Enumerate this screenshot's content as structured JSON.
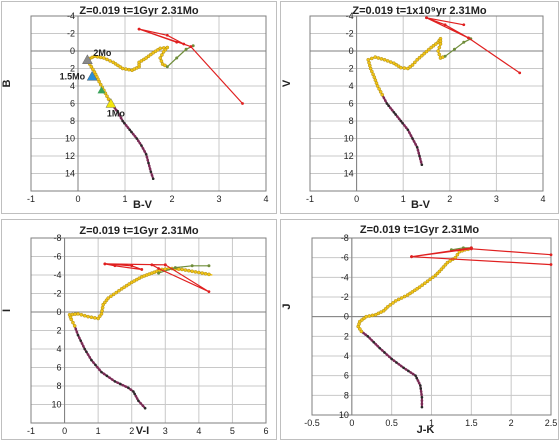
{
  "colors": {
    "main_sequence": "#7b2c56",
    "ms_dot": "#2a2a2a",
    "giant_branch": "#f2c417",
    "giant_edge": "#9a7d10",
    "agb_green": "#6f8d3a",
    "track_red": "#e02020",
    "grid": "#c8c8c8",
    "axis": "#7f7f7f"
  },
  "chart_data": [
    {
      "type": "scatter",
      "title": "Z=0.019  t=1Gyr  2.31Mo",
      "xlabel": "B-V",
      "ylabel": "B",
      "xlim": [
        -1,
        4
      ],
      "ylim": [
        -4,
        16
      ],
      "y_inverted": true,
      "grid": true,
      "xticks": [
        -1,
        0,
        1,
        2,
        3,
        4
      ],
      "yticks": [
        -4,
        -2,
        0,
        2,
        4,
        6,
        8,
        10,
        12,
        14,
        16
      ],
      "ytick_labels": [
        "-4",
        "-2",
        "0",
        "2",
        "4",
        "6",
        "8",
        "10",
        "12",
        "14",
        ""
      ],
      "series": [
        {
          "role": "main_sequence",
          "points": [
            [
              1.6,
              14.6
            ],
            [
              1.55,
              13.8
            ],
            [
              1.5,
              12.8
            ],
            [
              1.45,
              11.8
            ],
            [
              1.35,
              10.8
            ],
            [
              1.25,
              10.0
            ],
            [
              1.1,
              9.0
            ],
            [
              0.95,
              8.0
            ],
            [
              0.85,
              7.0
            ],
            [
              0.75,
              6.3
            ],
            [
              0.65,
              5.5
            ]
          ]
        },
        {
          "role": "giant_branch",
          "points": [
            [
              0.65,
              5.5
            ],
            [
              0.55,
              4.5
            ],
            [
              0.45,
              3.5
            ],
            [
              0.35,
              2.4
            ],
            [
              0.25,
              1.5
            ],
            [
              0.2,
              1.0
            ],
            [
              0.35,
              0.6
            ],
            [
              0.55,
              0.8
            ],
            [
              0.75,
              1.3
            ],
            [
              0.95,
              2.0
            ],
            [
              1.15,
              2.2
            ],
            [
              1.3,
              1.8
            ],
            [
              1.3,
              1.3
            ],
            [
              1.45,
              0.8
            ],
            [
              1.6,
              0.2
            ],
            [
              1.75,
              -0.3
            ],
            [
              1.9,
              -0.4
            ],
            [
              1.82,
              0.1
            ],
            [
              1.75,
              0.8
            ],
            [
              1.8,
              1.5
            ],
            [
              1.9,
              1.8
            ]
          ]
        },
        {
          "role": "agb",
          "points": [
            [
              1.9,
              1.8
            ],
            [
              2.1,
              0.8
            ],
            [
              2.3,
              -0.2
            ],
            [
              2.45,
              -0.6
            ]
          ]
        },
        {
          "role": "post_agb",
          "points": [
            [
              1.3,
              -2.5
            ],
            [
              2.4,
              -0.5
            ],
            [
              3.5,
              6.0
            ],
            [
              2.4,
              -0.5
            ],
            [
              2.25,
              -0.8
            ],
            [
              1.9,
              -1.8
            ],
            [
              1.3,
              -2.5
            ],
            [
              2.1,
              -1.0
            ]
          ]
        }
      ],
      "markers": [
        {
          "label": "2Mo",
          "x": 0.2,
          "y": 1.0,
          "color": "#8a8a8a"
        },
        {
          "label": "1.5Mo",
          "x": 0.3,
          "y": 2.9,
          "color": "#2b8fd6"
        },
        {
          "label": "",
          "x": 0.5,
          "y": 4.5,
          "color": "#3aa35c"
        },
        {
          "label": "1Mo",
          "x": 0.7,
          "y": 6.0,
          "color": "#f2e60d"
        }
      ]
    },
    {
      "type": "scatter",
      "title": "Z=0.019  t=1x10⁹yr  2.31Mo",
      "xlabel": "B-V",
      "ylabel": "V",
      "xlim": [
        -1,
        4
      ],
      "ylim": [
        -4,
        16
      ],
      "y_inverted": true,
      "grid": true,
      "xticks": [
        -1,
        0,
        1,
        2,
        3,
        4
      ],
      "yticks": [
        -4,
        -2,
        0,
        2,
        4,
        6,
        8,
        10,
        12,
        14,
        16
      ],
      "ytick_labels": [
        "-4",
        "-2",
        "0",
        "2",
        "4",
        "6",
        "8",
        "10",
        "12",
        "14",
        ""
      ],
      "series": [
        {
          "role": "main_sequence",
          "points": [
            [
              1.4,
              13.0
            ],
            [
              1.35,
              12.0
            ],
            [
              1.3,
              11.0
            ],
            [
              1.2,
              10.0
            ],
            [
              1.1,
              9.0
            ],
            [
              0.95,
              8.0
            ],
            [
              0.8,
              7.0
            ],
            [
              0.65,
              6.0
            ],
            [
              0.55,
              5.0
            ]
          ]
        },
        {
          "role": "giant_branch",
          "points": [
            [
              0.55,
              5.0
            ],
            [
              0.45,
              4.0
            ],
            [
              0.38,
              3.0
            ],
            [
              0.3,
              2.0
            ],
            [
              0.25,
              1.0
            ],
            [
              0.4,
              0.7
            ],
            [
              0.6,
              1.0
            ],
            [
              0.8,
              1.4
            ],
            [
              0.95,
              1.9
            ],
            [
              1.1,
              2.0
            ],
            [
              1.2,
              1.6
            ],
            [
              1.3,
              1.0
            ],
            [
              1.45,
              0.3
            ],
            [
              1.6,
              -0.4
            ],
            [
              1.75,
              -1.0
            ],
            [
              1.8,
              -1.4
            ],
            [
              1.8,
              -0.8
            ],
            [
              1.75,
              0
            ],
            [
              1.8,
              0.8
            ],
            [
              1.9,
              0.6
            ]
          ]
        },
        {
          "role": "agb",
          "points": [
            [
              1.9,
              0.6
            ],
            [
              2.1,
              -0.2
            ],
            [
              2.3,
              -1.0
            ],
            [
              2.45,
              -1.4
            ]
          ]
        },
        {
          "role": "post_agb",
          "points": [
            [
              1.5,
              -3.8
            ],
            [
              2.4,
              -1.5
            ],
            [
              3.5,
              2.5
            ],
            [
              2.4,
              -1.5
            ],
            [
              1.9,
              -3.0
            ],
            [
              1.5,
              -3.8
            ],
            [
              2.3,
              -3.0
            ]
          ]
        }
      ],
      "markers": []
    },
    {
      "type": "scatter",
      "title": "Z=0.019  t=1Gyr  2.31Mo",
      "xlabel": "V-I",
      "ylabel": "I",
      "xlim": [
        -1,
        6
      ],
      "ylim": [
        -8,
        12
      ],
      "y_inverted": true,
      "grid": true,
      "xticks": [
        -1,
        0,
        1,
        2,
        3,
        4,
        5,
        6
      ],
      "yticks": [
        -8,
        -6,
        -4,
        -2,
        0,
        2,
        4,
        6,
        8,
        10,
        12
      ],
      "ytick_labels": [
        "-8",
        "-6",
        "-4",
        "-2",
        "0",
        "2",
        "4",
        "6",
        "8",
        "10",
        ""
      ],
      "series": [
        {
          "role": "main_sequence",
          "points": [
            [
              2.4,
              10.4
            ],
            [
              2.2,
              9.6
            ],
            [
              2.05,
              8.6
            ],
            [
              1.9,
              8.2
            ],
            [
              1.5,
              7.5
            ],
            [
              1.1,
              6.5
            ],
            [
              0.8,
              5.2
            ],
            [
              0.6,
              4.0
            ],
            [
              0.4,
              2.5
            ],
            [
              0.3,
              1.5
            ]
          ]
        },
        {
          "role": "giant_branch",
          "points": [
            [
              0.3,
              1.5
            ],
            [
              0.2,
              0.8
            ],
            [
              0.15,
              0.3
            ],
            [
              0.4,
              0.2
            ],
            [
              0.7,
              0.5
            ],
            [
              1.0,
              0.7
            ],
            [
              1.1,
              0.2
            ],
            [
              1.15,
              -0.8
            ],
            [
              1.3,
              -1.5
            ],
            [
              1.7,
              -2.5
            ],
            [
              2.0,
              -3.2
            ],
            [
              2.3,
              -3.8
            ],
            [
              2.6,
              -4.2
            ],
            [
              2.9,
              -4.6
            ],
            [
              3.2,
              -4.7
            ],
            [
              3.5,
              -4.6
            ],
            [
              3.8,
              -4.4
            ],
            [
              4.1,
              -4.2
            ],
            [
              4.4,
              -4.0
            ]
          ]
        },
        {
          "role": "agb",
          "points": [
            [
              2.8,
              -4.2
            ],
            [
              3.3,
              -4.8
            ],
            [
              3.8,
              -5.0
            ],
            [
              4.3,
              -5.0
            ]
          ]
        },
        {
          "role": "post_agb",
          "points": [
            [
              1.2,
              -5.2
            ],
            [
              2.0,
              -5.0
            ],
            [
              2.3,
              -4.6
            ],
            [
              1.5,
              -5.0
            ],
            [
              1.2,
              -5.2
            ],
            [
              3.0,
              -5.1
            ],
            [
              4.3,
              -2.2
            ],
            [
              2.8,
              -4.7
            ],
            [
              2.6,
              -5.1
            ],
            [
              3.0,
              -5.1
            ]
          ]
        }
      ],
      "markers": []
    },
    {
      "type": "scatter",
      "title": "Z=0.019  t=1Gyr  2.31Mo",
      "xlabel": "J-K",
      "ylabel": "J",
      "xlim": [
        -0.5,
        2.5
      ],
      "ylim": [
        -8,
        10
      ],
      "y_inverted": true,
      "grid": true,
      "xticks": [
        -0.5,
        0,
        0.5,
        1,
        1.5,
        2,
        2.5
      ],
      "yticks": [
        -8,
        -6,
        -4,
        -2,
        0,
        2,
        4,
        6,
        8,
        10
      ],
      "ytick_labels": [
        "-8",
        "-6",
        "-4",
        "-2",
        "0",
        "2",
        "4",
        "6",
        "8",
        "10"
      ],
      "series": [
        {
          "role": "main_sequence",
          "points": [
            [
              0.88,
              9.2
            ],
            [
              0.88,
              8.2
            ],
            [
              0.86,
              7.0
            ],
            [
              0.8,
              6.0
            ],
            [
              0.65,
              5.2
            ],
            [
              0.5,
              4.3
            ],
            [
              0.35,
              3.2
            ],
            [
              0.2,
              2.0
            ],
            [
              0.12,
              1.5
            ]
          ]
        },
        {
          "role": "giant_branch",
          "points": [
            [
              0.12,
              1.5
            ],
            [
              0.08,
              1.0
            ],
            [
              0.1,
              0.5
            ],
            [
              0.18,
              0.0
            ],
            [
              0.3,
              -0.2
            ],
            [
              0.4,
              -0.6
            ],
            [
              0.45,
              -1.0
            ],
            [
              0.55,
              -1.6
            ],
            [
              0.7,
              -2.2
            ],
            [
              0.85,
              -3.0
            ],
            [
              0.95,
              -3.6
            ],
            [
              1.05,
              -4.2
            ],
            [
              1.1,
              -4.6
            ],
            [
              1.2,
              -5.5
            ],
            [
              1.3,
              -6.0
            ],
            [
              1.35,
              -6.6
            ],
            [
              1.42,
              -6.8
            ],
            [
              1.5,
              -6.9
            ]
          ]
        },
        {
          "role": "agb",
          "points": [
            [
              1.25,
              -6.8
            ],
            [
              1.4,
              -7.0
            ],
            [
              1.5,
              -7.0
            ]
          ]
        },
        {
          "role": "post_agb",
          "points": [
            [
              0.75,
              -6.1
            ],
            [
              1.5,
              -6.9
            ],
            [
              2.5,
              -6.3
            ],
            [
              1.5,
              -6.9
            ],
            [
              0.75,
              -6.1
            ],
            [
              2.5,
              -5.3
            ],
            [
              0.75,
              -6.1
            ],
            [
              1.5,
              -7.0
            ]
          ]
        }
      ],
      "markers": []
    }
  ]
}
